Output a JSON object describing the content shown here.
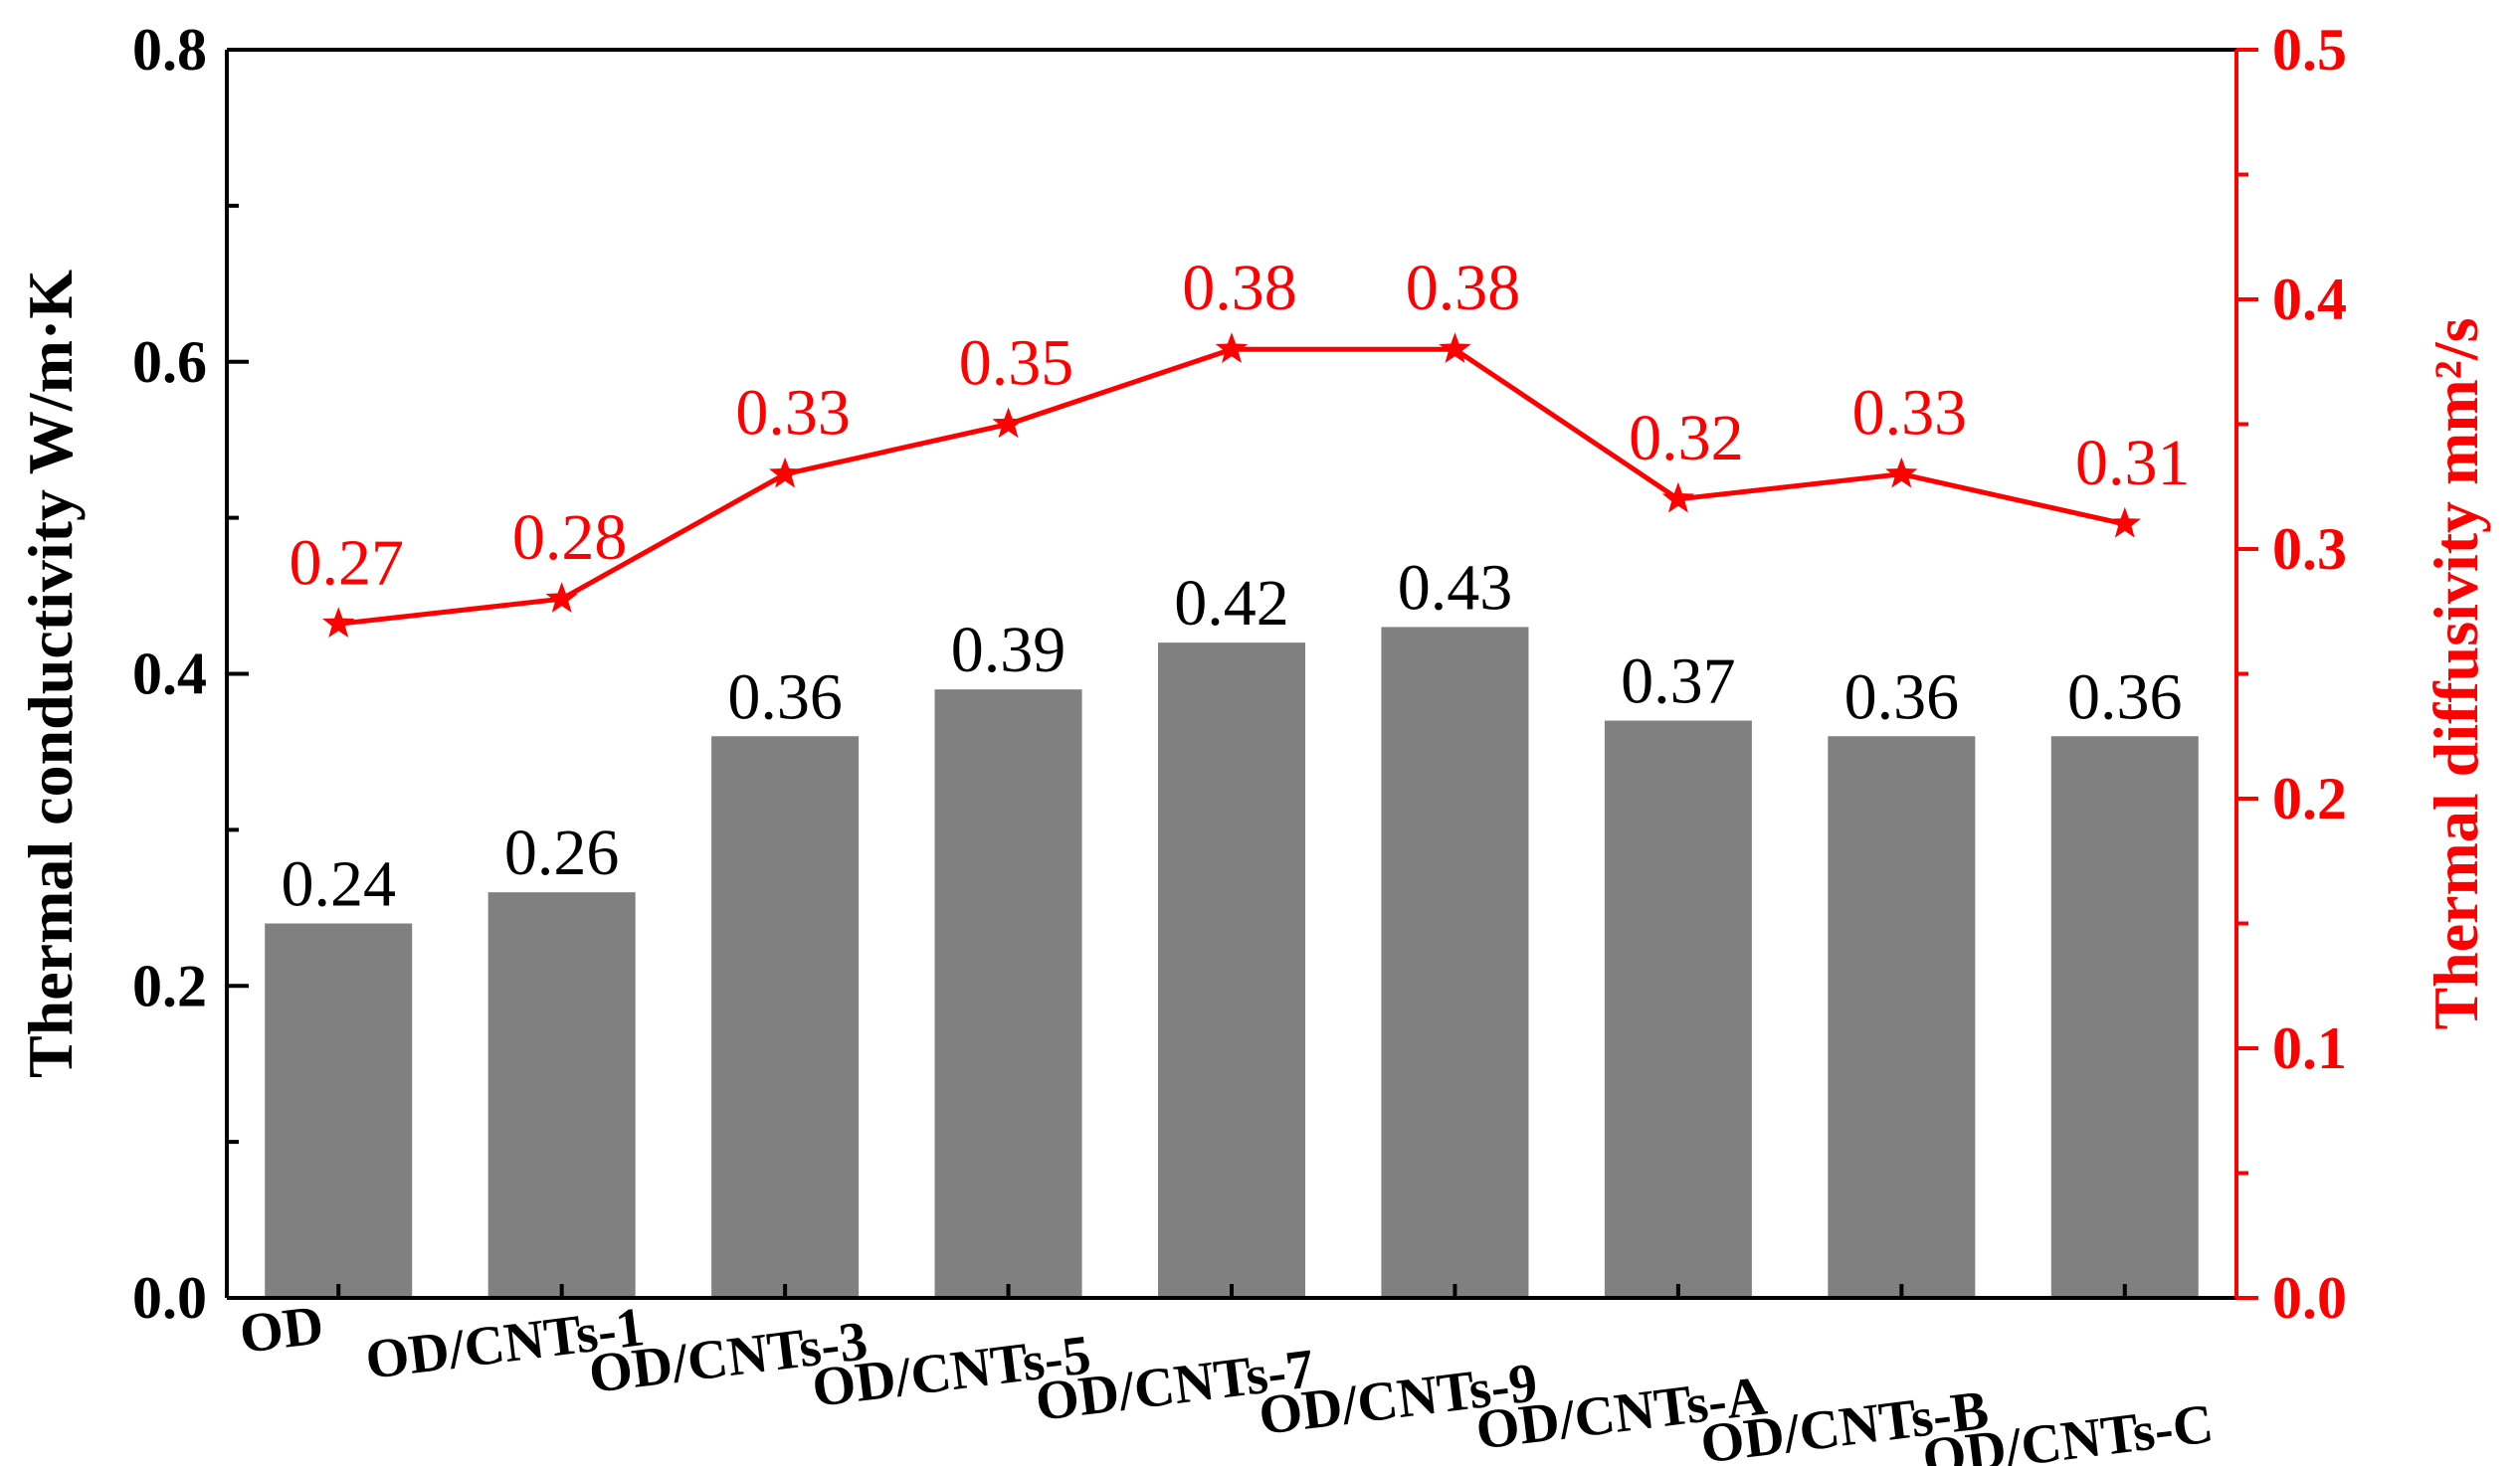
{
  "chart_data": {
    "type": "bar",
    "categories": [
      "OD",
      "OD/CNTs-1",
      "OD/CNTs-3",
      "OD/CNTs-5",
      "OD/CNTs-7",
      "OD/CNTs-9",
      "OD/CNTs-A",
      "OD/CNTs-B",
      "OD/CNTs-C"
    ],
    "series": [
      {
        "name": "Thermal conductivity",
        "type": "bar",
        "axis": "left",
        "color": "#808080",
        "values": [
          0.24,
          0.26,
          0.36,
          0.39,
          0.42,
          0.43,
          0.37,
          0.36,
          0.36
        ],
        "labels": [
          "0.24",
          "0.26",
          "0.36",
          "0.39",
          "0.42",
          "0.43",
          "0.37",
          "0.36",
          "0.36"
        ]
      },
      {
        "name": "Thermal diffusivity",
        "type": "line",
        "marker": "star",
        "axis": "right",
        "color": "#ff0000",
        "values": [
          0.27,
          0.28,
          0.33,
          0.35,
          0.38,
          0.38,
          0.32,
          0.33,
          0.31
        ],
        "labels": [
          "0.27",
          "0.28",
          "0.33",
          "0.35",
          "0.38",
          "0.38",
          "0.32",
          "0.33",
          "0.31"
        ]
      }
    ],
    "ylabel": "Thermal conductivity W/m·K",
    "ylabel_right": "Thermal diffusivity mm²/s",
    "ylim": [
      0,
      0.8
    ],
    "ylim_right": [
      0,
      0.5
    ],
    "yticks": [
      "0.0",
      "0.2",
      "0.4",
      "0.6",
      "0.8"
    ],
    "yticks_right": [
      "0.0",
      "0.1",
      "0.2",
      "0.3",
      "0.4",
      "0.5"
    ],
    "grid": false,
    "colors": {
      "bar": "#808080",
      "line": "#ff0000",
      "axis_left": "#000000",
      "axis_right": "#ff0000"
    }
  }
}
